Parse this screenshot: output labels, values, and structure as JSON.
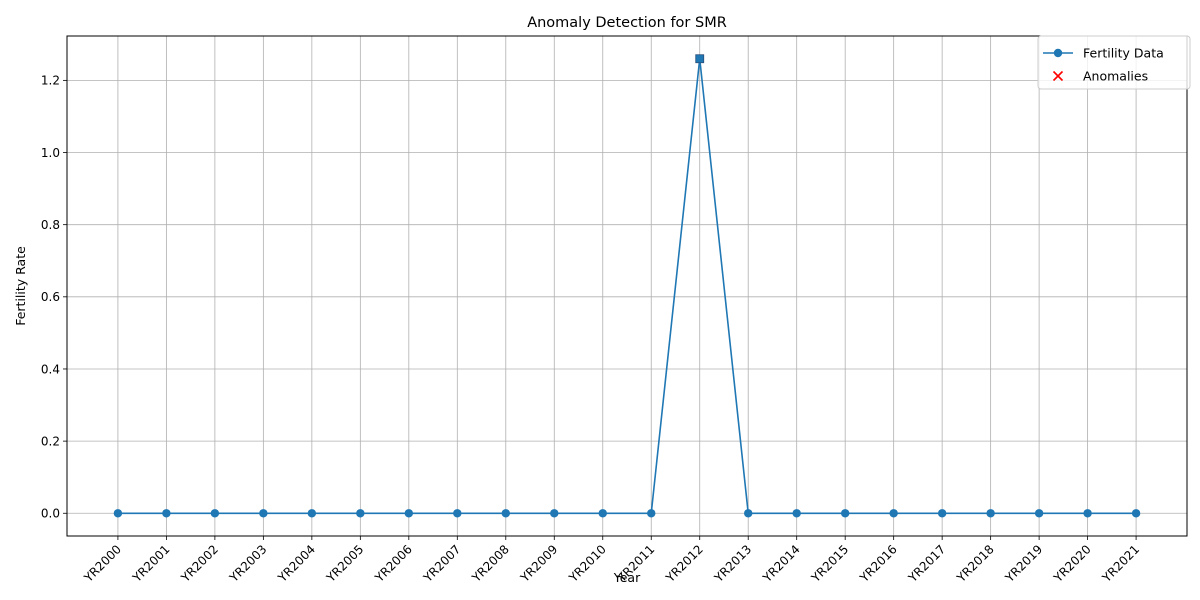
{
  "chart_data": {
    "type": "line",
    "title": "Anomaly Detection for SMR",
    "xlabel": "Year",
    "ylabel": "Fertility Rate",
    "categories": [
      "YR2000",
      "YR2001",
      "YR2002",
      "YR2003",
      "YR2004",
      "YR2005",
      "YR2006",
      "YR2007",
      "YR2008",
      "YR2009",
      "YR2010",
      "YR2011",
      "YR2012",
      "YR2013",
      "YR2014",
      "YR2015",
      "YR2016",
      "YR2017",
      "YR2018",
      "YR2019",
      "YR2020",
      "YR2021"
    ],
    "series": [
      {
        "name": "Fertility Data",
        "color": "#1f77b4",
        "marker": "circle",
        "values": [
          0,
          0,
          0,
          0,
          0,
          0,
          0,
          0,
          0,
          0,
          0,
          0,
          1.26,
          0,
          0,
          0,
          0,
          0,
          0,
          0,
          0,
          0
        ]
      }
    ],
    "anomalies": {
      "name": "Anomalies",
      "color": "#ff0000",
      "marker": "x",
      "categories": [],
      "values": []
    },
    "highlight": {
      "category": "YR2012",
      "value": 1.26,
      "marker": "square"
    },
    "yticks": [
      0.0,
      0.2,
      0.4,
      0.6,
      0.8,
      1.0,
      1.2
    ],
    "ytick_labels": [
      "0.0",
      "0.2",
      "0.4",
      "0.6",
      "0.8",
      "1.0",
      "1.2"
    ],
    "ylim": [
      -0.063,
      1.323
    ],
    "grid": true,
    "legend_position": "top-right"
  }
}
